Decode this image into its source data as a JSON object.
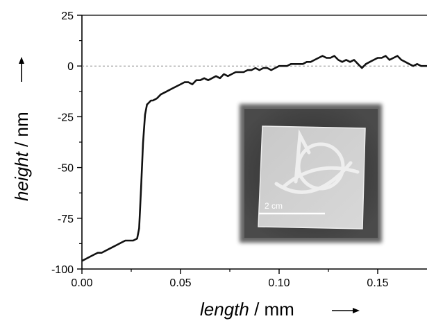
{
  "chart_data": {
    "type": "line",
    "xlabel_italic": "length",
    "xlabel_unit": " / mm",
    "ylabel_italic": "height",
    "ylabel_unit": " / nm",
    "xlim": [
      0.0,
      0.175
    ],
    "ylim": [
      -100,
      25
    ],
    "x_ticks": [
      0.0,
      0.05,
      0.1,
      0.15
    ],
    "x_tick_labels": [
      "0.00",
      "0.05",
      "0.10",
      "0.15"
    ],
    "y_ticks": [
      25,
      0,
      -25,
      -50,
      -75,
      -100
    ],
    "y_tick_labels": [
      "25",
      "0",
      "-25",
      "-50",
      "-75",
      "-100"
    ],
    "reference_line": {
      "y": 0,
      "style": "dashed"
    },
    "grid": false,
    "line_color": "#111111",
    "series": [
      {
        "x": [
          0.0,
          0.002,
          0.004,
          0.006,
          0.008,
          0.01,
          0.012,
          0.014,
          0.016,
          0.018,
          0.02,
          0.022,
          0.024,
          0.026,
          0.028,
          0.029,
          0.03,
          0.031,
          0.032,
          0.033,
          0.034,
          0.035,
          0.036,
          0.038,
          0.04,
          0.042,
          0.044,
          0.046,
          0.048,
          0.05,
          0.052,
          0.054,
          0.056,
          0.058,
          0.06,
          0.062,
          0.064,
          0.066,
          0.068,
          0.07,
          0.072,
          0.074,
          0.076,
          0.078,
          0.08,
          0.082,
          0.084,
          0.086,
          0.088,
          0.09,
          0.092,
          0.094,
          0.096,
          0.098,
          0.1,
          0.102,
          0.104,
          0.106,
          0.108,
          0.11,
          0.112,
          0.114,
          0.116,
          0.118,
          0.12,
          0.122,
          0.124,
          0.126,
          0.128,
          0.13,
          0.132,
          0.134,
          0.136,
          0.138,
          0.14,
          0.142,
          0.144,
          0.146,
          0.148,
          0.15,
          0.152,
          0.154,
          0.156,
          0.158,
          0.16,
          0.162,
          0.164,
          0.166,
          0.168,
          0.17,
          0.172,
          0.175
        ],
        "y": [
          -96,
          -95,
          -94,
          -93,
          -92,
          -92,
          -91,
          -90,
          -89,
          -88,
          -87,
          -86,
          -86,
          -86,
          -85,
          -80,
          -60,
          -38,
          -24,
          -19,
          -18,
          -17,
          -17,
          -16,
          -14,
          -13,
          -12,
          -11,
          -10,
          -9,
          -8,
          -8,
          -9,
          -7,
          -7,
          -6,
          -7,
          -6,
          -5,
          -6,
          -4,
          -5,
          -4,
          -3,
          -3,
          -3,
          -2,
          -2,
          -1,
          -2,
          -1,
          -1,
          -2,
          -1,
          0,
          0,
          0,
          1,
          1,
          1,
          1,
          2,
          2,
          3,
          4,
          5,
          4,
          4,
          5,
          3,
          2,
          3,
          2,
          3,
          1,
          -1,
          1,
          2,
          3,
          4,
          4,
          5,
          3,
          4,
          5,
          3,
          2,
          1,
          0,
          1,
          0,
          0
        ]
      }
    ],
    "inset_image": {
      "scale_bar_label": "2 cm"
    }
  }
}
